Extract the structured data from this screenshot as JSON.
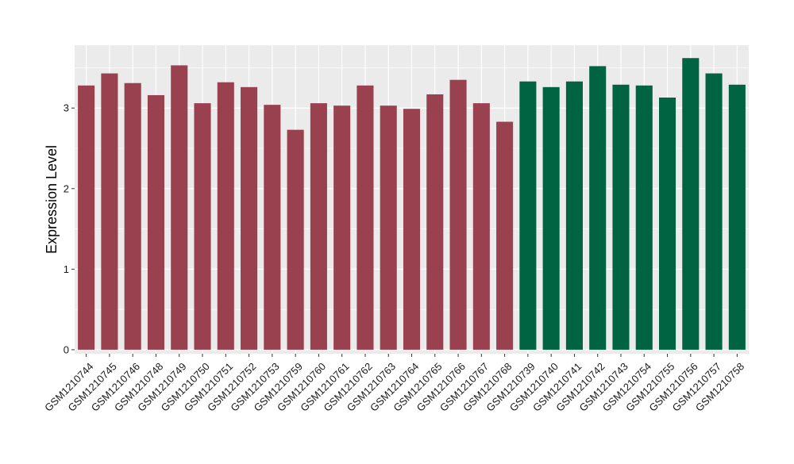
{
  "chart_data": {
    "type": "bar",
    "title": "",
    "xlabel": "",
    "ylabel": "Expression Level",
    "ylim": [
      -0.05,
      3.78
    ],
    "yticks": [
      0,
      1,
      2,
      3
    ],
    "grid": true,
    "legend": "none",
    "colors": {
      "group_a": "#9a4150",
      "group_b": "#006342",
      "panel": "#ebebeb",
      "grid": "#ffffff"
    },
    "categories": [
      "GSM1210744",
      "GSM1210745",
      "GSM1210746",
      "GSM1210748",
      "GSM1210749",
      "GSM1210750",
      "GSM1210751",
      "GSM1210752",
      "GSM1210753",
      "GSM1210759",
      "GSM1210760",
      "GSM1210761",
      "GSM1210762",
      "GSM1210763",
      "GSM1210764",
      "GSM1210765",
      "GSM1210766",
      "GSM1210767",
      "GSM1210768",
      "GSM1210739",
      "GSM1210740",
      "GSM1210741",
      "GSM1210742",
      "GSM1210743",
      "GSM1210754",
      "GSM1210755",
      "GSM1210756",
      "GSM1210757",
      "GSM1210758"
    ],
    "values": [
      3.28,
      3.43,
      3.31,
      3.16,
      3.53,
      3.06,
      3.32,
      3.26,
      3.04,
      2.73,
      3.06,
      3.03,
      3.28,
      3.03,
      2.99,
      3.17,
      3.35,
      3.06,
      2.83,
      3.33,
      3.26,
      3.33,
      3.52,
      3.29,
      3.28,
      3.13,
      3.62,
      3.43,
      3.29
    ],
    "groups": [
      "a",
      "a",
      "a",
      "a",
      "a",
      "a",
      "a",
      "a",
      "a",
      "a",
      "a",
      "a",
      "a",
      "a",
      "a",
      "a",
      "a",
      "a",
      "a",
      "b",
      "b",
      "b",
      "b",
      "b",
      "b",
      "b",
      "b",
      "b",
      "b"
    ]
  }
}
